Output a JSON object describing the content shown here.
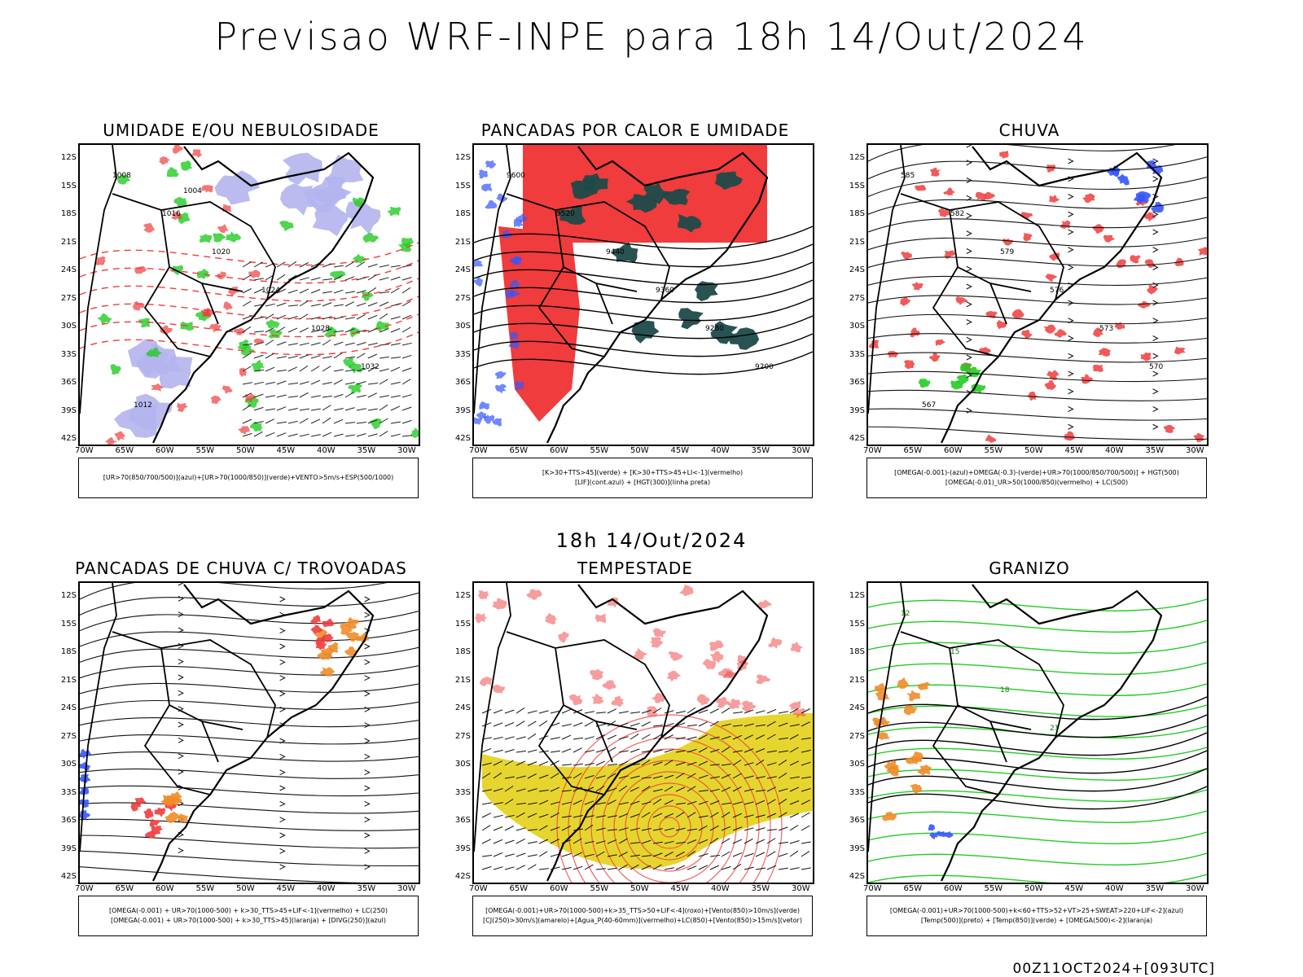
{
  "header": {
    "title": "Previsao WRF-INPE  para 18h 14/Out/2024",
    "mid_title": "18h 14/Out/2024",
    "footer": "00Z11OCT2024+[093UTC]"
  },
  "axes": {
    "lat": [
      "12S",
      "15S",
      "18S",
      "21S",
      "24S",
      "27S",
      "30S",
      "33S",
      "36S",
      "39S",
      "42S"
    ],
    "lon": [
      "70W",
      "65W",
      "60W",
      "55W",
      "50W",
      "45W",
      "40W",
      "35W",
      "30W"
    ]
  },
  "panels": [
    {
      "title": "UMIDADE E/OU NEBULOSIDADE",
      "legend": [
        "[UR>70(850/700/500)](azul)+[UR>70(1000/850)](verde)+VENTO>5m/s+ESP(500/1000)"
      ],
      "contour_labels": [
        "1008",
        "1016",
        "1020",
        "1024",
        "1028",
        "1032",
        "1012",
        "1004"
      ]
    },
    {
      "title": "PANCADAS POR CALOR E UMIDADE",
      "legend": [
        "[K>30+TTS>45](verde) + [K>30+TTS>45+LI<-1](vermelho)",
        "[LIF](cont.azul) + [HGT(300)](linha preta)"
      ],
      "contour_labels": [
        "9600",
        "9520",
        "9440",
        "9360",
        "9280",
        "9200"
      ]
    },
    {
      "title": "CHUVA",
      "legend": [
        "[OMEGA(-0.001)-(azul)+OMEGA(-0.3)-(verde)+UR>70(1000/850/700/500)] + HGT(500)",
        "[OMEGA(-0.01)_UR>50(1000/850)(vermelho) + LC(500)"
      ],
      "contour_labels": [
        "585",
        "582",
        "579",
        "576",
        "573",
        "570",
        "567"
      ]
    },
    {
      "title": "PANCADAS DE CHUVA C/ TROVOADAS",
      "legend": [
        "[OMEGA(-0.001) + UR>70(1000-500) + k>30_TTS>45+LIF<-1](vermelho) + LC(250)",
        "[OMEGA(-0.001) + UR>70(1000-500) + k>30_TTS>45](laranja) + [DIVG(250)](azul)"
      ],
      "contour_labels": []
    },
    {
      "title": "TEMPESTADE",
      "legend": [
        "[OMEGA(-0.001)+UR>70(1000-500)+k>35_TTS>50+LIF<-4](roxo)+[Vento(850)>10m/s](verde)",
        "[CJ(250)>30m/s](amarelo)+[Agua_P(40-60mm)](vermelho)+LC(850)+[Vento(850)>15m/s](vetor)"
      ],
      "contour_labels": []
    },
    {
      "title": "GRANIZO",
      "legend": [
        "[OMEGA(-0.001)+UR>70(1000-500)+k<60+TTS>52+VT>25+SWEAT>220+LIF<-2](azul)",
        "[Temp(500)](preto) + [Temp(850)](verde) + [OMEGA(500)<-2](laranja)"
      ],
      "contour_labels": [
        "12",
        "15",
        "18",
        "21"
      ]
    }
  ],
  "colors": {
    "red": "#f03c3c",
    "green": "#22cc22",
    "blue": "#3355ff",
    "lavender": "#b4b4ee",
    "darkteal": "#1e4a4a",
    "yellow": "#e6d52e",
    "orange": "#f08c28"
  }
}
